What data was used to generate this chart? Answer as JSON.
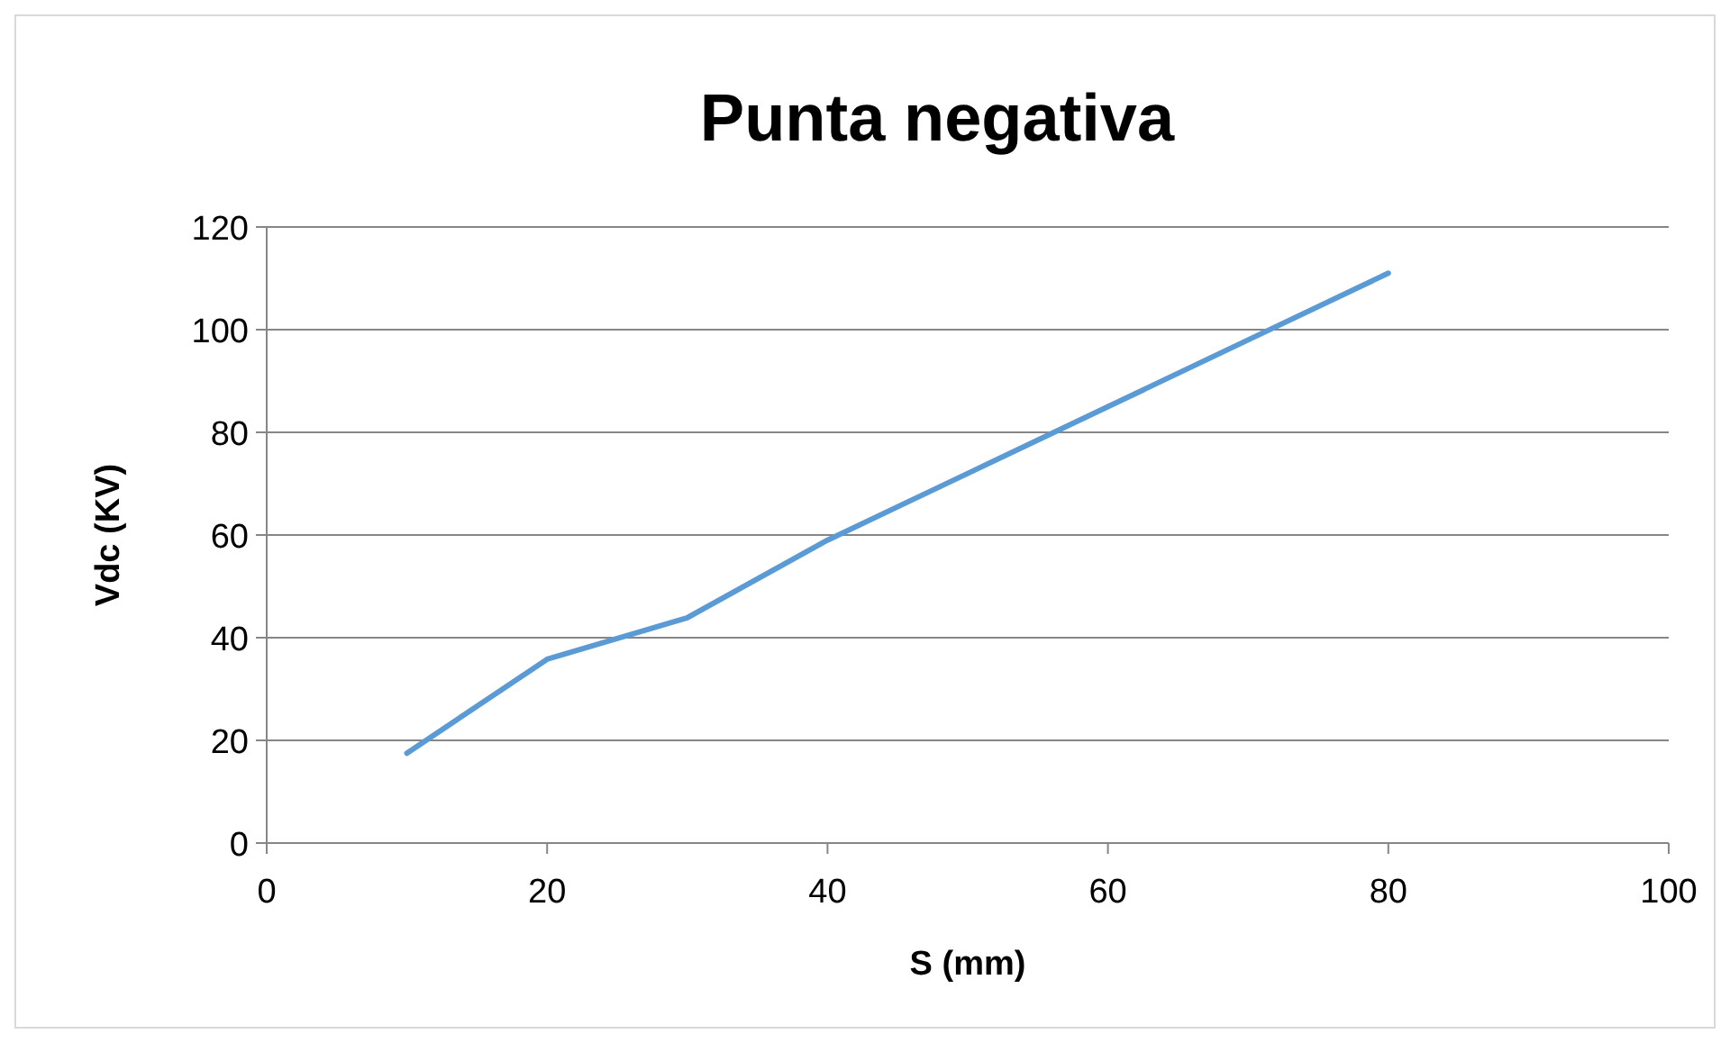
{
  "chart_data": {
    "type": "line",
    "title": "Punta negativa",
    "xlabel": "S (mm)",
    "ylabel": "Vdc (KV)",
    "x": [
      10,
      20,
      30,
      40,
      50,
      60,
      70,
      80
    ],
    "series": [
      {
        "color": "#5b9bd5",
        "values": [
          17.5,
          35.8,
          43.9,
          59,
          72,
          85,
          98,
          111
        ]
      }
    ],
    "xlim": [
      0,
      100
    ],
    "xticks": [
      0,
      20,
      40,
      60,
      80,
      100
    ],
    "ylim": [
      0,
      120
    ],
    "yticks": [
      0,
      20,
      40,
      60,
      80,
      100,
      120
    ],
    "grid": "y",
    "marker": "none",
    "line_style": "solid"
  }
}
